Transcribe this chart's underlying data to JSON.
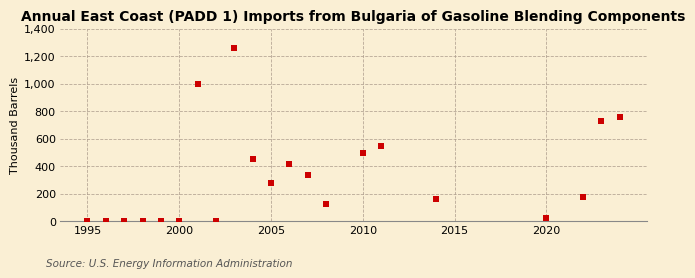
{
  "title": "Annual East Coast (PADD 1) Imports from Bulgaria of Gasoline Blending Components",
  "ylabel": "Thousand Barrels",
  "source": "Source: U.S. Energy Information Administration",
  "background_color": "#faefd4",
  "data_points": [
    [
      1995,
      0
    ],
    [
      1996,
      0
    ],
    [
      1997,
      3
    ],
    [
      1998,
      3
    ],
    [
      1999,
      3
    ],
    [
      2000,
      3
    ],
    [
      2001,
      998
    ],
    [
      2002,
      0
    ],
    [
      2003,
      1260
    ],
    [
      2004,
      450
    ],
    [
      2005,
      275
    ],
    [
      2006,
      415
    ],
    [
      2007,
      335
    ],
    [
      2008,
      125
    ],
    [
      2010,
      500
    ],
    [
      2011,
      550
    ],
    [
      2014,
      165
    ],
    [
      2020,
      25
    ],
    [
      2022,
      175
    ],
    [
      2023,
      730
    ],
    [
      2024,
      755
    ]
  ],
  "marker_color": "#cc0000",
  "marker_size": 16,
  "marker_shape": "s",
  "ylim": [
    0,
    1400
  ],
  "xlim": [
    1993.5,
    2025.5
  ],
  "yticks": [
    0,
    200,
    400,
    600,
    800,
    1000,
    1200,
    1400
  ],
  "xticks": [
    1995,
    2000,
    2005,
    2010,
    2015,
    2020
  ],
  "grid_color": "#b0a090",
  "title_fontsize": 10,
  "label_fontsize": 8,
  "tick_fontsize": 8,
  "source_fontsize": 7.5
}
